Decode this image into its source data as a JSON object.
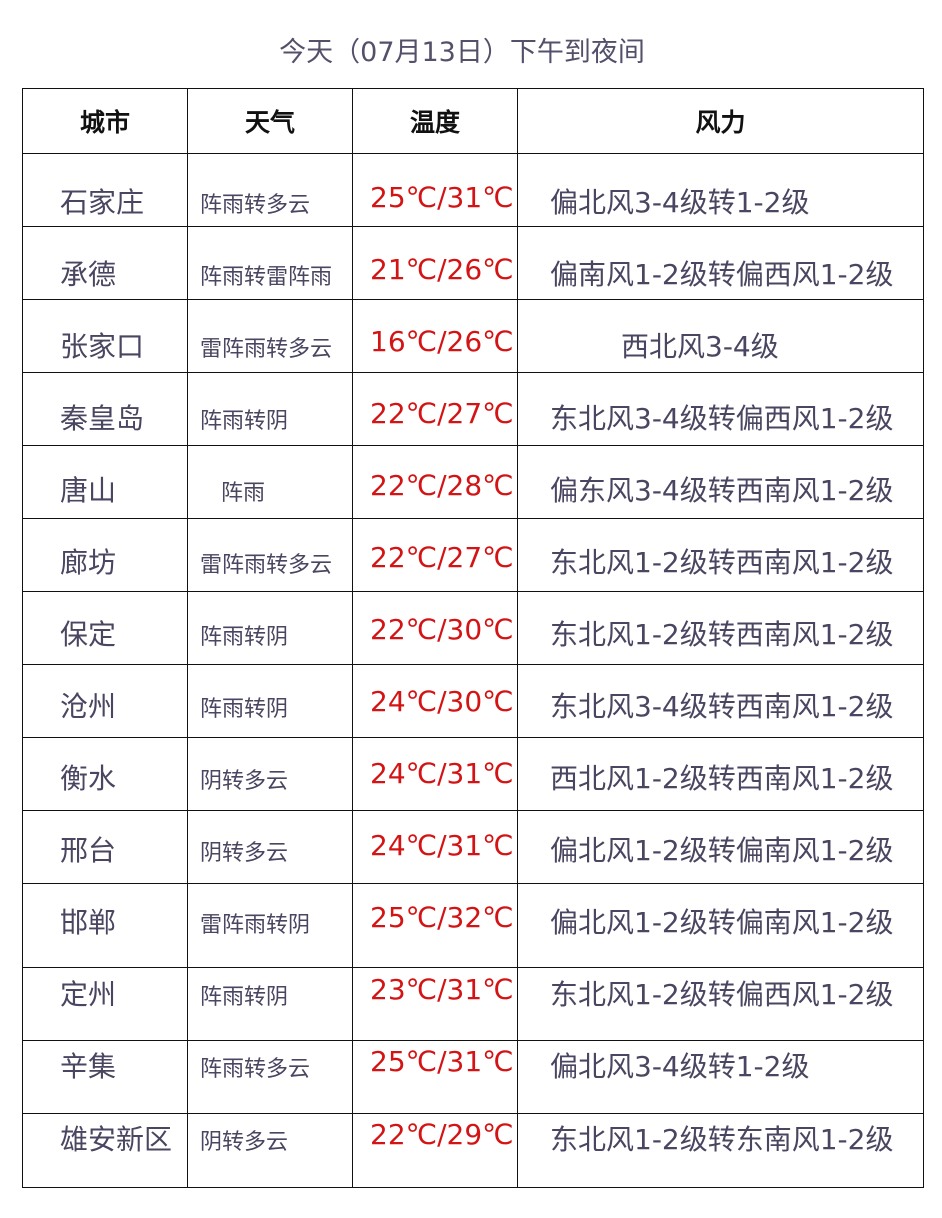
{
  "title": "今天（07月13日）下午到夜间",
  "headers": [
    "城市",
    "天气",
    "温度",
    "风力"
  ],
  "colors": {
    "text": "#4a4560",
    "temperature": "#d41414",
    "border": "#111111"
  },
  "rows": [
    {
      "city": "石家庄",
      "weather": "阵雨转多云",
      "temp": "25℃/31℃",
      "wind": "偏北风3-4级转1-2级"
    },
    {
      "city": "承德",
      "weather": "阵雨转雷阵雨",
      "temp": "21℃/26℃",
      "wind": "偏南风1-2级转偏西风1-2级"
    },
    {
      "city": "张家口",
      "weather": "雷阵雨转多云",
      "temp": "16℃/26℃",
      "wind": "西北风3-4级"
    },
    {
      "city": "秦皇岛",
      "weather": "阵雨转阴",
      "temp": "22℃/27℃",
      "wind": "东北风3-4级转偏西风1-2级"
    },
    {
      "city": "唐山",
      "weather": "阵雨",
      "temp": "22℃/28℃",
      "wind": "偏东风3-4级转西南风1-2级"
    },
    {
      "city": "廊坊",
      "weather": "雷阵雨转多云",
      "temp": "22℃/27℃",
      "wind": "东北风1-2级转西南风1-2级"
    },
    {
      "city": "保定",
      "weather": "阵雨转阴",
      "temp": "22℃/30℃",
      "wind": "东北风1-2级转西南风1-2级"
    },
    {
      "city": "沧州",
      "weather": "阵雨转阴",
      "temp": "24℃/30℃",
      "wind": "东北风3-4级转西南风1-2级"
    },
    {
      "city": "衡水",
      "weather": "阴转多云",
      "temp": "24℃/31℃",
      "wind": "西北风1-2级转西南风1-2级"
    },
    {
      "city": "邢台",
      "weather": "阴转多云",
      "temp": "24℃/31℃",
      "wind": "偏北风1-2级转偏南风1-2级"
    },
    {
      "city": "邯郸",
      "weather": "雷阵雨转阴",
      "temp": "25℃/32℃",
      "wind": "偏北风1-2级转偏南风1-2级"
    },
    {
      "city": "定州",
      "weather": "阵雨转阴",
      "temp": "23℃/31℃",
      "wind": "东北风1-2级转偏西风1-2级"
    },
    {
      "city": "辛集",
      "weather": "阵雨转多云",
      "temp": "25℃/31℃",
      "wind": "偏北风3-4级转1-2级"
    },
    {
      "city": "雄安新区",
      "weather": "阴转多云",
      "temp": "22℃/29℃",
      "wind": "东北风1-2级转东南风1-2级"
    }
  ]
}
